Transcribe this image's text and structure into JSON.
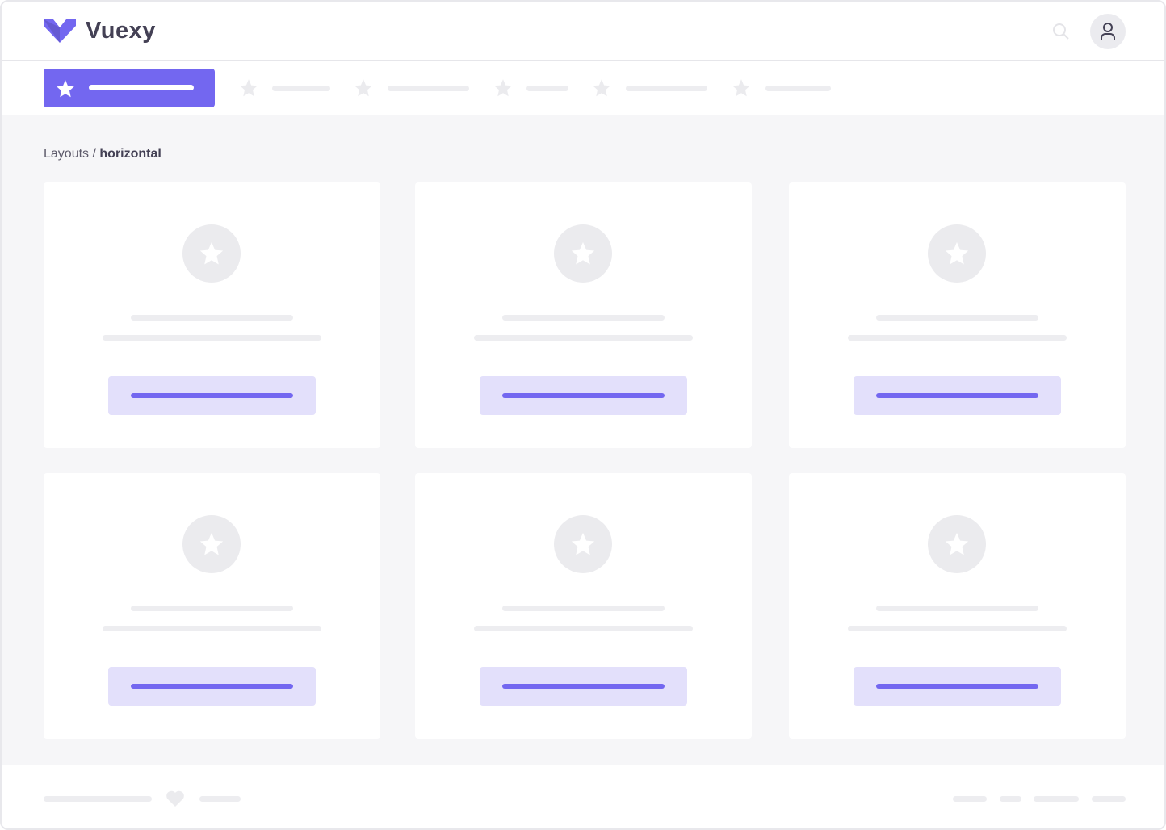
{
  "header": {
    "brand": "Vuexy",
    "search_icon": "search-icon",
    "user_icon": "user-icon"
  },
  "colors": {
    "primary": "#7367f0",
    "primary_light": "#e3e0fb",
    "placeholder": "#ededf0",
    "background": "#f6f6f8"
  },
  "breadcrumb": {
    "parent": "Layouts",
    "separator": " / ",
    "current": "horizontal"
  },
  "nav": {
    "items": [
      {
        "icon": "star-icon",
        "active": true
      },
      {
        "icon": "star-icon"
      },
      {
        "icon": "star-icon"
      },
      {
        "icon": "star-icon"
      },
      {
        "icon": "star-icon"
      },
      {
        "icon": "star-icon"
      }
    ]
  },
  "cards": [
    {
      "icon": "star-icon"
    },
    {
      "icon": "star-icon"
    },
    {
      "icon": "star-icon"
    },
    {
      "icon": "star-icon"
    },
    {
      "icon": "star-icon"
    },
    {
      "icon": "star-icon"
    }
  ],
  "footer": {
    "icon": "heart-icon"
  }
}
